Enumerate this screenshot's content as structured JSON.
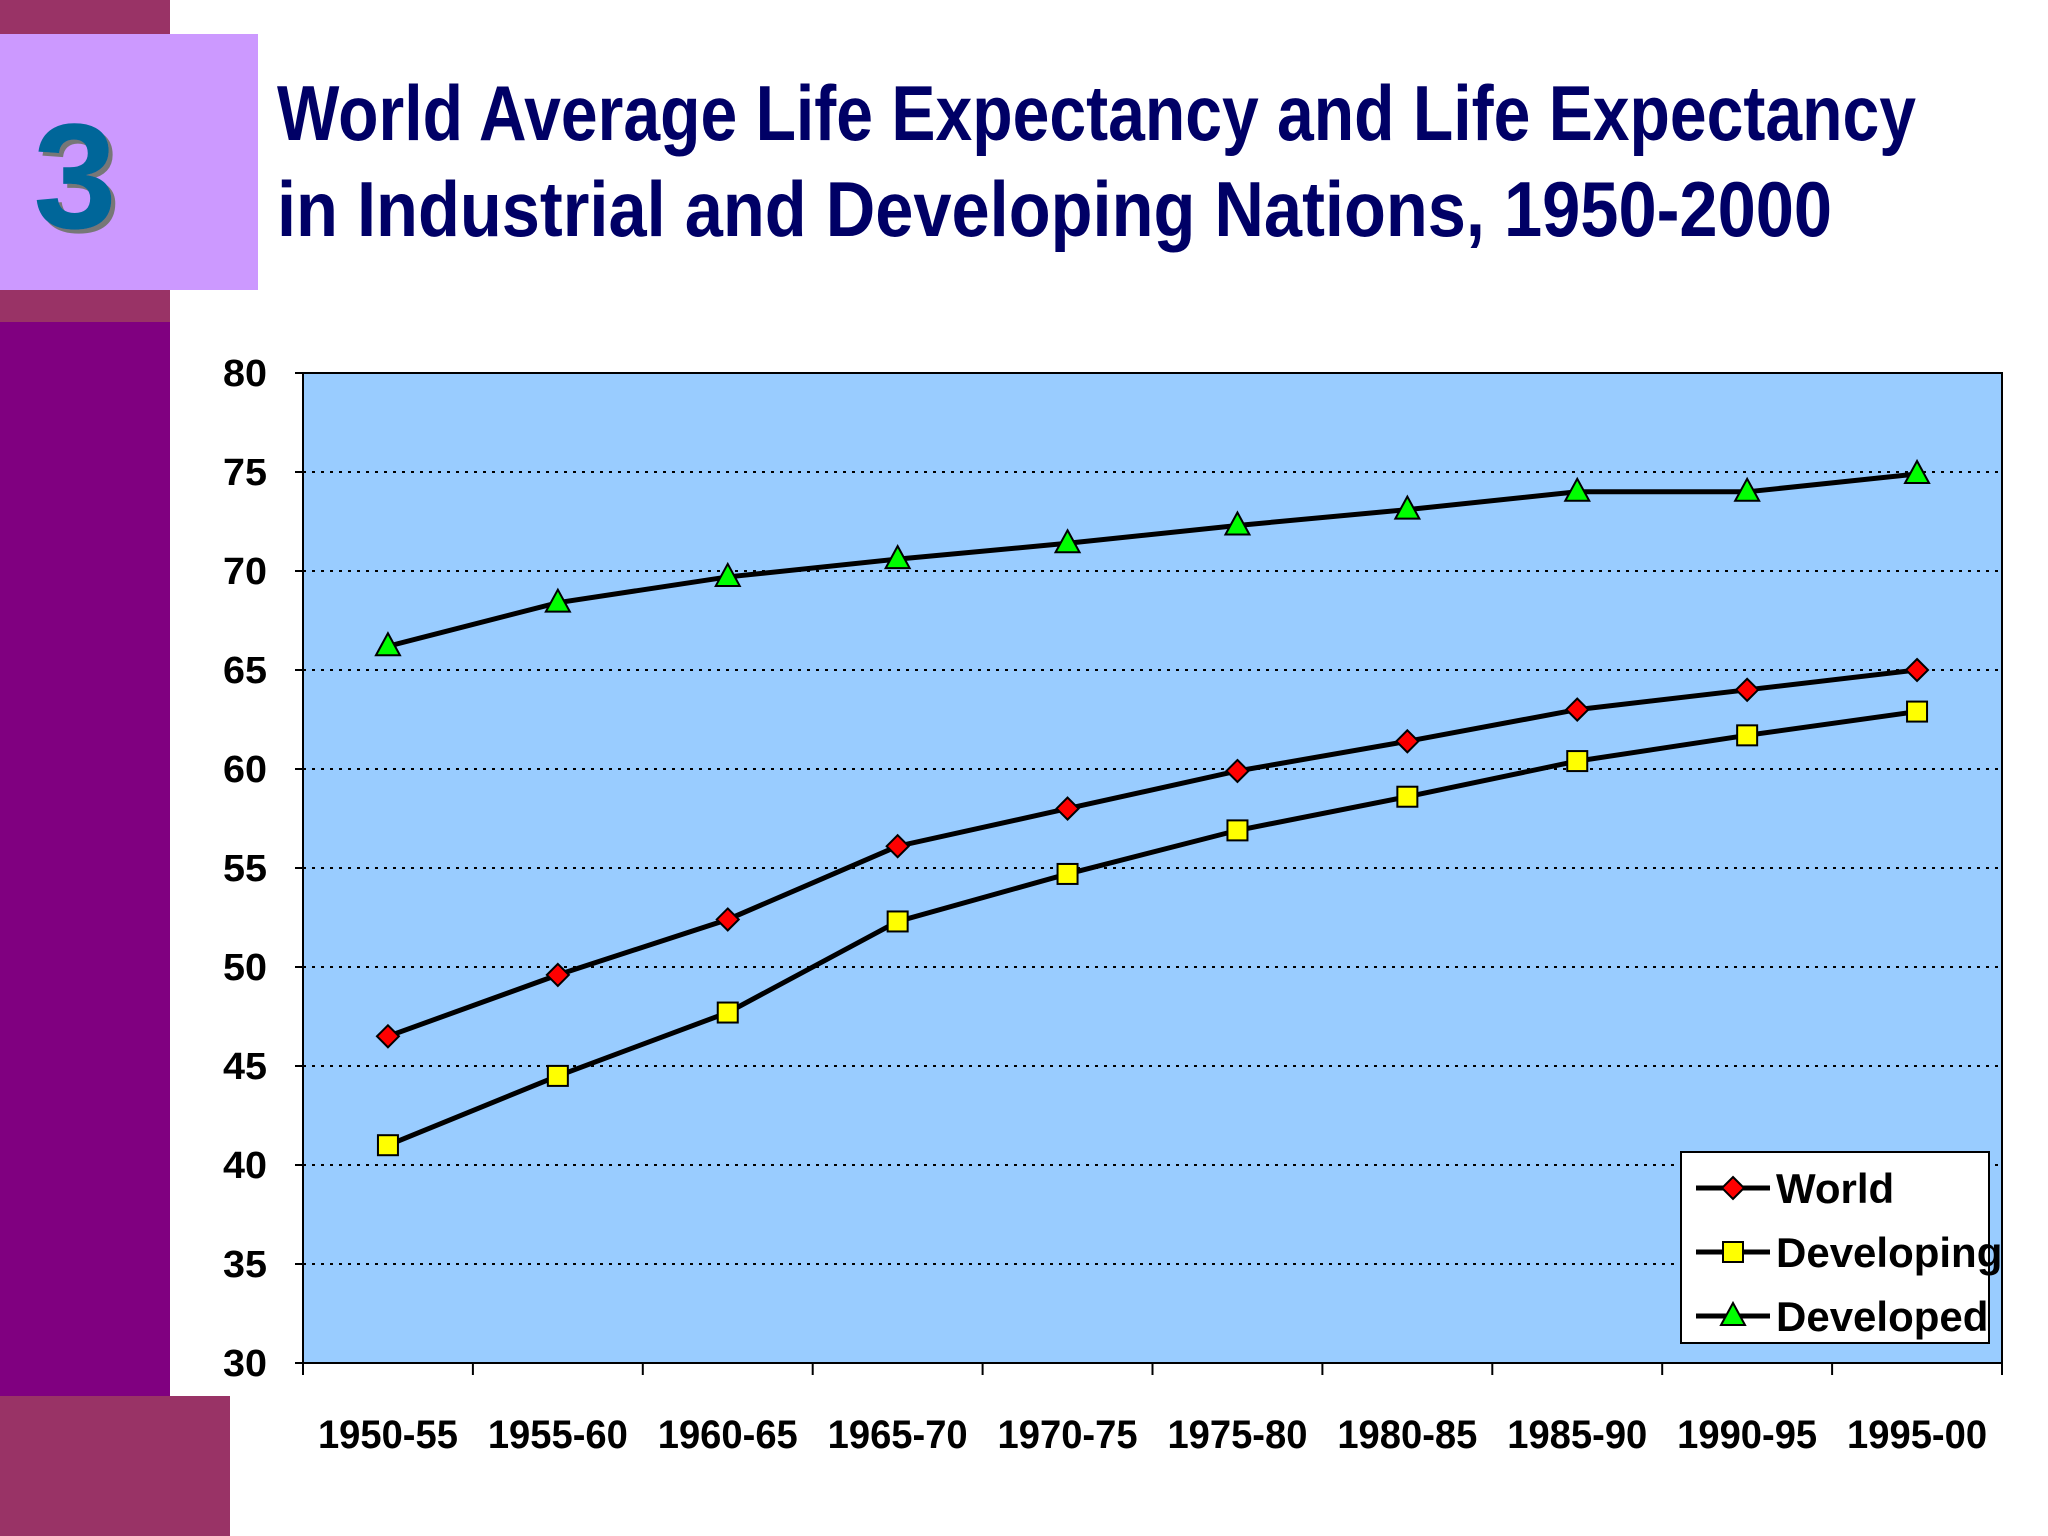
{
  "slide": {
    "number": "3",
    "title_line1": "World Average Life Expectancy and Life Expectancy",
    "title_line2": "in Industrial and Developing Nations, 1950-2000"
  },
  "colors": {
    "sidebar_dark": "#800080",
    "sidebar_band": "#993366",
    "number_box": "#CC99FF",
    "number_text": "#006699",
    "title_text": "#000066",
    "plot_bg": "#99CCFF"
  },
  "chart_data": {
    "type": "line",
    "title": "",
    "xlabel": "",
    "ylabel": "",
    "ylim": [
      30,
      80
    ],
    "yticks": [
      30,
      35,
      40,
      45,
      50,
      55,
      60,
      65,
      70,
      75,
      80
    ],
    "grid": "horizontal dotted",
    "legend_position": "bottom-right",
    "categories": [
      "1950-55",
      "1955-60",
      "1960-65",
      "1965-70",
      "1970-75",
      "1975-80",
      "1980-85",
      "1985-90",
      "1990-95",
      "1995-00"
    ],
    "series": [
      {
        "name": "World",
        "marker": "diamond",
        "color": "#FF0000",
        "values": [
          46.5,
          49.6,
          52.4,
          56.1,
          58.0,
          59.9,
          61.4,
          63.0,
          64.0,
          65.0
        ]
      },
      {
        "name": "Developing",
        "marker": "square",
        "color": "#FFFF00",
        "values": [
          41.0,
          44.5,
          47.7,
          52.3,
          54.7,
          56.9,
          58.6,
          60.4,
          61.7,
          62.9
        ]
      },
      {
        "name": "Developed",
        "marker": "triangle",
        "color": "#00FF00",
        "values": [
          66.2,
          68.4,
          69.7,
          70.6,
          71.4,
          72.3,
          73.1,
          74.0,
          74.0,
          74.9
        ]
      }
    ]
  }
}
